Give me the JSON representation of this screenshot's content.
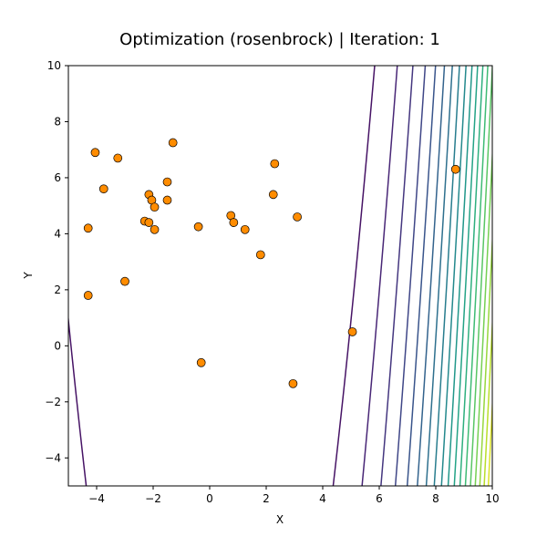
{
  "chart_data": {
    "type": "scatter",
    "title": "Optimization (rosenbrock) | Iteration: 1",
    "xlabel": "X",
    "ylabel": "Y",
    "xlim": [
      -5,
      10
    ],
    "ylim": [
      -5,
      10
    ],
    "x_ticks": [
      -4,
      -2,
      0,
      2,
      4,
      6,
      8,
      10
    ],
    "y_ticks": [
      -4,
      -2,
      0,
      2,
      4,
      6,
      8,
      10
    ],
    "x_tick_labels": [
      "−4",
      "−2",
      "0",
      "2",
      "4",
      "6",
      "8",
      "10"
    ],
    "y_tick_labels": [
      "−4",
      "−2",
      "0",
      "2",
      "4",
      "6",
      "8",
      "10"
    ],
    "grid": false,
    "background": {
      "type": "contour",
      "function": "rosenbrock",
      "colormap": "viridis"
    },
    "series": [
      {
        "marker_color": "#ff8c00",
        "edge_color": "#000000",
        "points": [
          [
            -4.05,
            6.9
          ],
          [
            -3.25,
            6.7
          ],
          [
            -3.75,
            5.6
          ],
          [
            -4.3,
            4.2
          ],
          [
            -4.3,
            1.8
          ],
          [
            -1.3,
            7.25
          ],
          [
            -1.5,
            5.85
          ],
          [
            -2.15,
            5.4
          ],
          [
            -2.05,
            5.2
          ],
          [
            -1.95,
            4.95
          ],
          [
            -1.5,
            5.2
          ],
          [
            -2.3,
            4.45
          ],
          [
            -2.15,
            4.4
          ],
          [
            -1.95,
            4.15
          ],
          [
            -3.0,
            2.3
          ],
          [
            -0.4,
            4.25
          ],
          [
            0.75,
            4.65
          ],
          [
            0.85,
            4.4
          ],
          [
            1.25,
            4.15
          ],
          [
            1.8,
            3.25
          ],
          [
            2.3,
            6.5
          ],
          [
            2.25,
            5.4
          ],
          [
            3.1,
            4.6
          ],
          [
            -0.3,
            -0.6
          ],
          [
            2.95,
            -1.35
          ],
          [
            5.05,
            0.5
          ],
          [
            8.7,
            6.3
          ]
        ]
      }
    ]
  }
}
